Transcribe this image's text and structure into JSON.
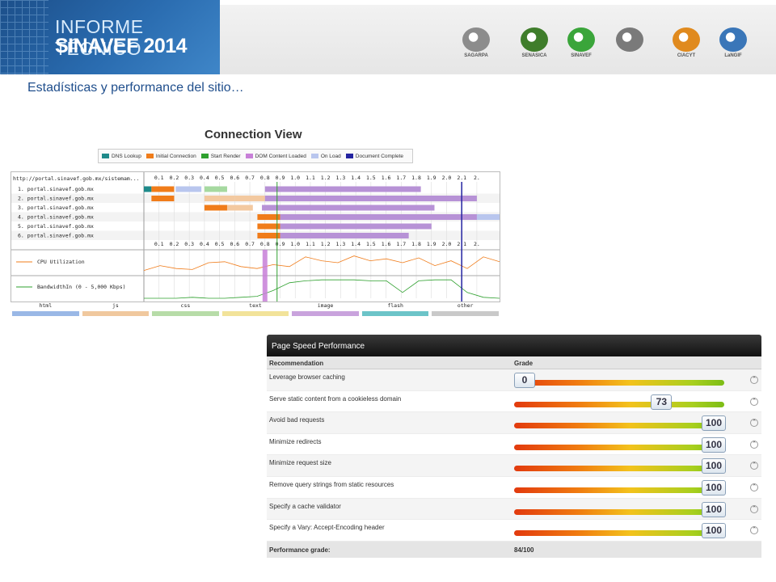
{
  "header": {
    "title_line1": "INFORME TÉCNICO",
    "title_line2": "SINAVEF 2014",
    "logos": [
      {
        "name": "sagarpa-logo",
        "caption": "SAGARPA",
        "color": "#8c8c8c"
      },
      {
        "name": "senasica-logo",
        "caption": "SENASICA",
        "color": "#3f7d2b"
      },
      {
        "name": "sinavef-logo",
        "caption": "SINAVEF",
        "color": "#3aa53a"
      },
      {
        "name": "uaslp-shield-logo",
        "caption": "",
        "color": "#7a7a7a"
      },
      {
        "name": "ciacyt-logo",
        "caption": "CIACYT",
        "color": "#e08a1e"
      },
      {
        "name": "langif-logo",
        "caption": "LaNGIF",
        "color": "#3a76b8"
      }
    ]
  },
  "subtitle": "Estadísticas y performance del sitio…",
  "connection_view": {
    "title": "Connection View",
    "legend": [
      {
        "label": "DNS Lookup",
        "color": "#1e8a8a"
      },
      {
        "label": "Initial Connection",
        "color": "#f07c1a"
      },
      {
        "label": "Start Render",
        "color": "#2ea02e"
      },
      {
        "label": "DOM Content Loaded",
        "color": "#c880d8"
      },
      {
        "label": "On Load",
        "color": "#b9c6ee"
      },
      {
        "label": "Document Complete",
        "color": "#2323a0"
      }
    ],
    "url_header": "http://portal.sinavef.gob.mx/sistemam...",
    "scale": [
      "0.1",
      "0.2",
      "0.3",
      "0.4",
      "0.5",
      "0.6",
      "0.7",
      "0.8",
      "0.9",
      "1.0",
      "1.1",
      "1.2",
      "1.3",
      "1.4",
      "1.5",
      "1.6",
      "1.7",
      "1.8",
      "1.9",
      "2.0",
      "2.1",
      "2."
    ],
    "rows": [
      {
        "label": "1. portal.sinavef.gob.mx",
        "bars": [
          [
            0.0,
            0.05,
            "#1e8a8a"
          ],
          [
            0.05,
            0.2,
            "#f07c1a"
          ],
          [
            0.21,
            0.38,
            "#b9c6ee"
          ],
          [
            0.4,
            0.55,
            "#a6d9a0"
          ],
          [
            0.8,
            1.83,
            "#b792d6"
          ]
        ]
      },
      {
        "label": "2. portal.sinavef.gob.mx",
        "bars": [
          [
            0.05,
            0.2,
            "#f07c1a"
          ],
          [
            0.4,
            0.6,
            "#f3c9a0"
          ],
          [
            0.6,
            0.8,
            "#f3c9a0"
          ],
          [
            0.8,
            2.2,
            "#b792d6"
          ]
        ]
      },
      {
        "label": "3. portal.sinavef.gob.mx",
        "bars": [
          [
            0.4,
            0.55,
            "#f07c1a"
          ],
          [
            0.55,
            0.72,
            "#f3c9a0"
          ],
          [
            0.78,
            1.92,
            "#b792d6"
          ]
        ]
      },
      {
        "label": "4. portal.sinavef.gob.mx",
        "bars": [
          [
            0.75,
            0.9,
            "#f07c1a"
          ],
          [
            0.9,
            2.35,
            "#b792d6"
          ],
          [
            2.2,
            2.4,
            "#b9c6ee"
          ]
        ]
      },
      {
        "label": "5. portal.sinavef.gob.mx",
        "bars": [
          [
            0.75,
            0.9,
            "#f07c1a"
          ],
          [
            0.9,
            1.9,
            "#b792d6"
          ]
        ]
      },
      {
        "label": "6. portal.sinavef.gob.mx",
        "bars": [
          [
            0.75,
            0.9,
            "#f07c1a"
          ],
          [
            0.9,
            1.75,
            "#b792d6"
          ]
        ]
      }
    ],
    "metric_labels": [
      "CPU Utilization",
      "BandwidthIn (0 - 5,000 Kbps)"
    ],
    "markers": {
      "start_render": 0.88,
      "dom_content_loaded": 0.8,
      "document_complete": 2.1
    },
    "types": [
      {
        "label": "html",
        "color": "#9ab8e6"
      },
      {
        "label": "js",
        "color": "#f0c89e"
      },
      {
        "label": "css",
        "color": "#b7dca8"
      },
      {
        "label": "text",
        "color": "#f2e39a"
      },
      {
        "label": "image",
        "color": "#c9a3dd"
      },
      {
        "label": "flash",
        "color": "#6cc4c8"
      },
      {
        "label": "other",
        "color": "#c9c9c9"
      }
    ]
  },
  "page_speed": {
    "title": "Page Speed Performance",
    "col_recommendation": "Recommendation",
    "col_grade": "Grade",
    "rows": [
      {
        "name": "Leverage browser caching",
        "grade": "0",
        "value": 0
      },
      {
        "name": "Serve static content from a cookieless domain",
        "grade": "73",
        "value": 73
      },
      {
        "name": "Avoid bad requests",
        "grade": "100",
        "value": 100
      },
      {
        "name": "Minimize redirects",
        "grade": "100",
        "value": 100
      },
      {
        "name": "Minimize request size",
        "grade": "100",
        "value": 100
      },
      {
        "name": "Remove query strings from static resources",
        "grade": "100",
        "value": 100
      },
      {
        "name": "Specify a cache validator",
        "grade": "100",
        "value": 100
      },
      {
        "name": "Specify a Vary: Accept-Encoding header",
        "grade": "100",
        "value": 100
      }
    ],
    "footer_label": "Performance grade:",
    "footer_value": "84/100"
  }
}
